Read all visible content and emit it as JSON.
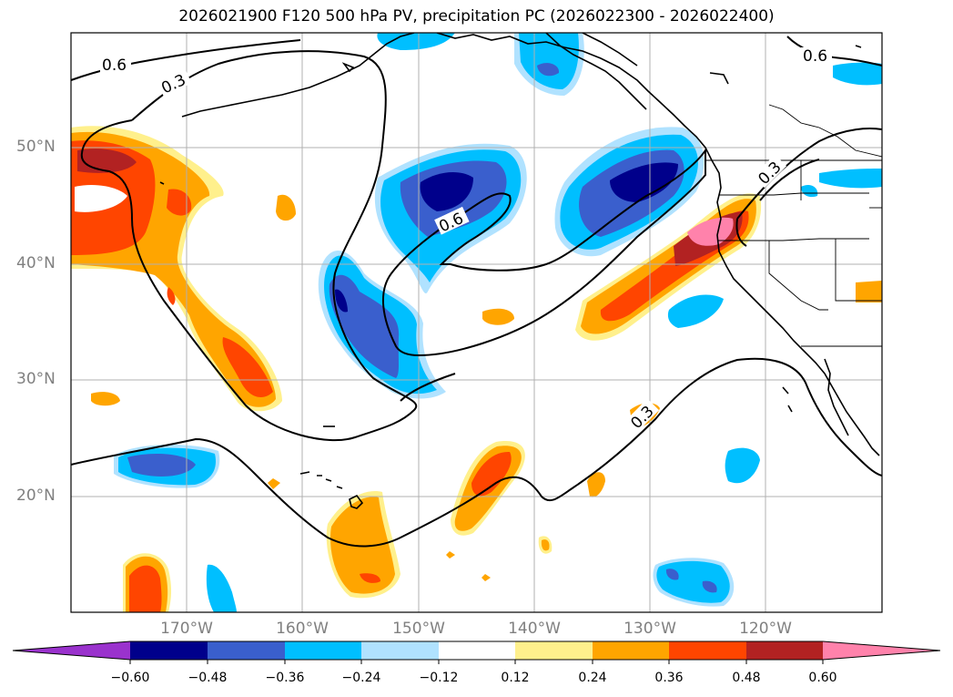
{
  "title": "2026021900 F120 500 hPa PV, precipitation PC (2026022300 - 2026022400)",
  "lat_labels": [
    "50°N",
    "40°N",
    "30°N",
    "20°N"
  ],
  "lon_labels": [
    "170°W",
    "160°W",
    "150°W",
    "140°W",
    "130°W",
    "120°W"
  ],
  "contour_labels": [
    "0.6",
    "0.3",
    "0.6",
    "0.3",
    "0.6",
    "0.3"
  ],
  "colorbar": {
    "ticks": [
      "−0.60",
      "−0.48",
      "−0.36",
      "−0.24",
      "−0.12",
      "0.12",
      "0.24",
      "0.36",
      "0.48",
      "0.60"
    ],
    "colors": [
      "#9a32cd",
      "#00008b",
      "#3a5fcd",
      "#00bfff",
      "#b0e2ff",
      "#ffffff",
      "#fff08c",
      "#ffa500",
      "#ff4500",
      "#b22222",
      "#ff82ab"
    ]
  }
}
